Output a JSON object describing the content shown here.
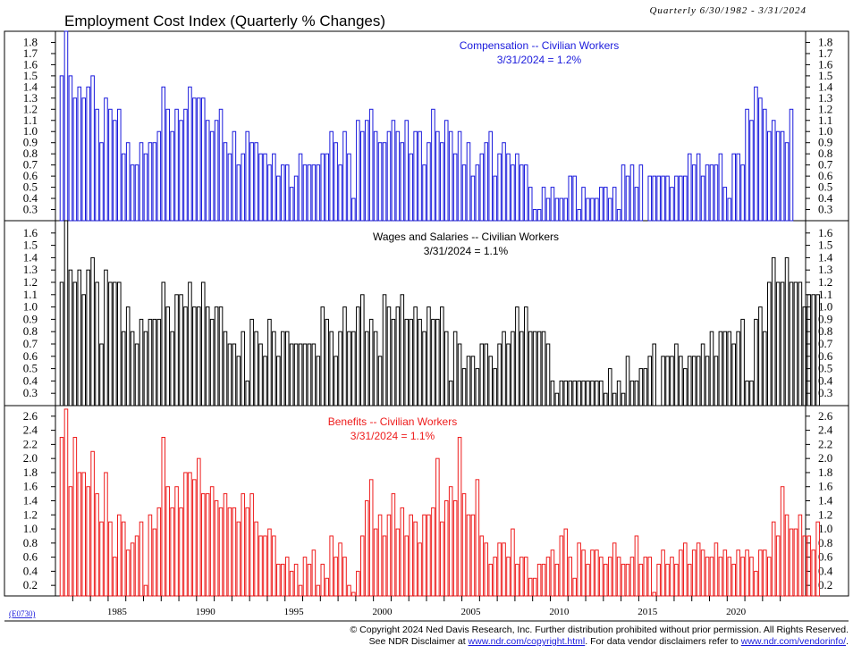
{
  "title": "Employment Cost Index (Quarterly % Changes)",
  "range_label": "Quarterly 6/30/1982 - 3/31/2024",
  "chart_code": "(E0730)",
  "footer": {
    "line1": "© Copyright 2024 Ned Davis Research, Inc.  Further distribution prohibited without prior permission.  All Rights Reserved.",
    "line2_pre": "See NDR Disclaimer at ",
    "line2_link1": "www.ndr.com/copyright.html",
    "line2_mid": ". For data vendor disclaimers refer to ",
    "line2_link2": "www.ndr.com/vendorinfo/",
    "line2_post": "."
  },
  "chart_data": {
    "type": "bar",
    "start_quarter": "1982 Q2",
    "end_quarter": "2024 Q1",
    "x_tick_labels": [
      "1985",
      "1990",
      "1995",
      "2000",
      "2005",
      "2010",
      "2015",
      "2020"
    ],
    "panels": [
      {
        "name": "Compensation -- Civilian Workers",
        "annotation_line1": "Compensation -- Civilian Workers",
        "annotation_line2": "3/31/2024 = 1.2%",
        "color": "#1a1adc",
        "ylim": [
          0.2,
          1.9
        ],
        "yticks": [
          "0.3",
          "0.4",
          "0.5",
          "0.6",
          "0.7",
          "0.8",
          "0.9",
          "1.0",
          "1.1",
          "1.2",
          "1.3",
          "1.4",
          "1.5",
          "1.6",
          "1.7",
          "1.8"
        ],
        "values": [
          1.5,
          1.9,
          1.5,
          1.3,
          1.4,
          1.3,
          1.4,
          1.5,
          1.2,
          0.9,
          1.3,
          1.2,
          1.1,
          1.2,
          0.8,
          0.9,
          0.7,
          0.7,
          0.9,
          0.8,
          0.9,
          0.9,
          1.0,
          1.4,
          1.2,
          1.0,
          1.2,
          1.1,
          1.2,
          1.4,
          1.3,
          1.3,
          1.3,
          1.1,
          1.0,
          1.1,
          1.2,
          0.9,
          0.8,
          1.0,
          0.7,
          0.8,
          1.0,
          0.9,
          0.9,
          0.8,
          0.8,
          0.7,
          0.8,
          0.6,
          0.7,
          0.7,
          0.5,
          0.6,
          0.8,
          0.7,
          0.7,
          0.7,
          0.7,
          0.8,
          0.8,
          1.0,
          0.9,
          0.7,
          1.0,
          0.8,
          0.4,
          1.1,
          1.0,
          1.1,
          1.2,
          1.0,
          0.9,
          0.9,
          1.0,
          1.1,
          1.0,
          0.9,
          1.1,
          0.8,
          1.0,
          1.0,
          0.7,
          0.9,
          1.2,
          1.0,
          0.9,
          1.1,
          1.0,
          0.8,
          1.0,
          0.7,
          0.9,
          0.6,
          0.7,
          0.8,
          0.9,
          1.0,
          0.6,
          0.8,
          0.9,
          0.8,
          0.7,
          0.8,
          0.7,
          0.7,
          0.5,
          0.3,
          0.3,
          0.5,
          0.4,
          0.5,
          0.4,
          0.4,
          0.4,
          0.6,
          0.6,
          0.3,
          0.5,
          0.4,
          0.4,
          0.4,
          0.5,
          0.5,
          0.4,
          0.5,
          0.3,
          0.7,
          0.6,
          0.7,
          0.5,
          0.7,
          0.2,
          0.6,
          0.6,
          0.6,
          0.6,
          0.6,
          0.5,
          0.6,
          0.6,
          0.6,
          0.8,
          0.7,
          0.8,
          0.6,
          0.7,
          0.7,
          0.7,
          0.8,
          0.5,
          0.4,
          0.8,
          0.8,
          0.7,
          1.2,
          1.1,
          1.4,
          1.3,
          1.2,
          1.0,
          1.1,
          1.0,
          1.0,
          0.9,
          1.2
        ]
      },
      {
        "name": "Wages and Salaries -- Civilian Workers",
        "annotation_line1": "Wages and Salaries -- Civilian Workers",
        "annotation_line2": "3/31/2024 = 1.1%",
        "color": "#000000",
        "ylim": [
          0.2,
          1.7
        ],
        "yticks": [
          "0.3",
          "0.4",
          "0.5",
          "0.6",
          "0.7",
          "0.8",
          "0.9",
          "1.0",
          "1.1",
          "1.2",
          "1.3",
          "1.4",
          "1.5",
          "1.6"
        ],
        "values": [
          1.2,
          1.7,
          1.3,
          1.2,
          1.3,
          1.1,
          1.3,
          1.4,
          1.2,
          0.7,
          1.3,
          1.2,
          1.2,
          1.2,
          0.8,
          1.0,
          0.8,
          0.7,
          0.9,
          0.8,
          0.9,
          0.9,
          0.9,
          1.2,
          1.0,
          0.8,
          1.1,
          1.1,
          1.0,
          1.2,
          1.0,
          1.0,
          1.2,
          1.0,
          0.9,
          1.0,
          1.0,
          0.8,
          0.7,
          0.7,
          0.6,
          0.8,
          0.4,
          0.9,
          0.8,
          0.7,
          0.6,
          0.9,
          0.8,
          0.6,
          0.8,
          0.8,
          0.7,
          0.7,
          0.7,
          0.7,
          0.7,
          0.7,
          0.6,
          1.0,
          0.9,
          0.8,
          0.6,
          0.8,
          1.0,
          0.8,
          0.8,
          1.0,
          1.1,
          0.8,
          0.9,
          0.8,
          0.6,
          1.1,
          1.0,
          0.9,
          1.0,
          1.1,
          0.9,
          0.9,
          1.0,
          0.9,
          0.8,
          1.0,
          0.9,
          0.9,
          1.0,
          0.8,
          0.4,
          0.8,
          0.7,
          0.5,
          0.6,
          0.6,
          0.5,
          0.7,
          0.7,
          0.6,
          0.5,
          0.7,
          0.8,
          0.7,
          0.8,
          1.0,
          0.8,
          1.0,
          0.8,
          0.8,
          0.8,
          0.8,
          0.7,
          0.4,
          0.3,
          0.4,
          0.4,
          0.4,
          0.4,
          0.4,
          0.4,
          0.4,
          0.4,
          0.4,
          0.4,
          0.3,
          0.5,
          0.3,
          0.4,
          0.3,
          0.6,
          0.4,
          0.4,
          0.5,
          0.5,
          0.6,
          0.7,
          0.2,
          0.6,
          0.6,
          0.6,
          0.7,
          0.6,
          0.5,
          0.6,
          0.6,
          0.6,
          0.7,
          0.6,
          0.8,
          0.6,
          0.8,
          0.8,
          0.8,
          0.7,
          0.8,
          0.9,
          0.4,
          0.4,
          0.9,
          1.0,
          0.8,
          1.2,
          1.4,
          1.2,
          1.2,
          1.4,
          1.2,
          1.2,
          1.2,
          1.0,
          1.1,
          1.1,
          1.1
        ]
      },
      {
        "name": "Benefits -- Civilian Workers",
        "annotation_line1": "Benefits -- Civilian Workers",
        "annotation_line2": "3/31/2024 = 1.1%",
        "color": "#ee1c1c",
        "ylim": [
          0.05,
          2.75
        ],
        "yticks": [
          "0.2",
          "0.4",
          "0.6",
          "0.8",
          "1.0",
          "1.2",
          "1.4",
          "1.6",
          "1.8",
          "2.0",
          "2.2",
          "2.4",
          "2.6"
        ],
        "values": [
          2.3,
          2.7,
          1.6,
          2.3,
          1.8,
          1.8,
          1.6,
          2.1,
          1.5,
          1.1,
          1.8,
          1.1,
          0.6,
          1.2,
          1.1,
          0.7,
          0.8,
          0.9,
          1.1,
          0.2,
          1.2,
          1.0,
          1.3,
          2.3,
          1.6,
          1.3,
          1.6,
          1.3,
          1.8,
          1.8,
          1.7,
          2.0,
          1.5,
          1.5,
          1.6,
          1.4,
          1.3,
          1.5,
          1.3,
          1.3,
          1.1,
          1.5,
          1.3,
          1.5,
          1.1,
          0.9,
          0.9,
          1.0,
          0.9,
          0.5,
          0.5,
          0.6,
          0.4,
          0.5,
          0.2,
          0.6,
          0.5,
          0.7,
          0.2,
          0.5,
          0.3,
          0.9,
          0.6,
          0.8,
          0.6,
          0.2,
          0.1,
          0.4,
          0.9,
          1.4,
          1.7,
          1.0,
          1.2,
          0.9,
          1.2,
          1.5,
          1.0,
          1.3,
          0.9,
          1.2,
          1.1,
          0.8,
          1.2,
          1.2,
          1.3,
          2.0,
          1.1,
          1.4,
          1.6,
          1.4,
          2.3,
          1.5,
          1.2,
          1.2,
          1.7,
          0.9,
          0.8,
          0.5,
          0.6,
          0.8,
          0.8,
          0.6,
          1.0,
          0.5,
          0.6,
          0.6,
          0.3,
          0.3,
          0.5,
          0.5,
          0.6,
          0.7,
          0.5,
          0.9,
          1.0,
          0.6,
          0.3,
          0.8,
          0.7,
          0.5,
          0.7,
          0.7,
          0.6,
          0.5,
          0.6,
          0.8,
          0.6,
          0.5,
          0.5,
          0.6,
          0.9,
          0.5,
          0.6,
          0.6,
          0.1,
          0.5,
          0.7,
          0.5,
          0.6,
          0.5,
          0.7,
          0.8,
          0.5,
          0.7,
          0.8,
          0.7,
          0.6,
          0.6,
          0.8,
          0.6,
          0.7,
          0.6,
          0.5,
          0.7,
          0.6,
          0.7,
          0.6,
          0.4,
          0.7,
          0.7,
          0.6,
          1.1,
          0.9,
          1.6,
          1.2,
          1.0,
          1.0,
          1.2,
          0.9,
          0.9,
          0.7,
          1.1
        ]
      }
    ]
  }
}
